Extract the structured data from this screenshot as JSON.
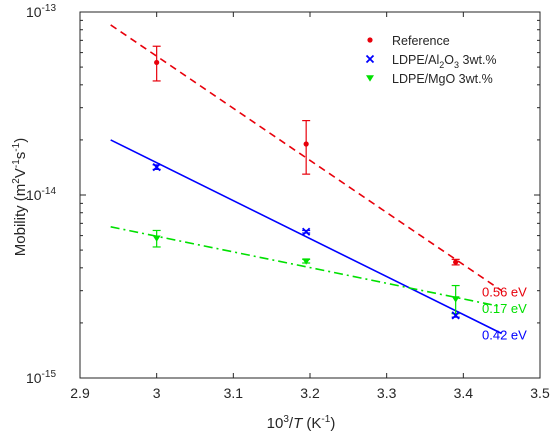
{
  "chart_data": {
    "type": "scatter",
    "xlabel": {
      "base": "10",
      "exp": "3",
      "slash": "/",
      "var": "T",
      "unit": " (K",
      "unit_exp": "-1",
      "close": ")"
    },
    "ylabel": {
      "pre": "Mobility (m",
      "e1": "2",
      "v": "V",
      "e2": "-1",
      "s": "s",
      "e3": "-1",
      "close": ")"
    },
    "xlim": [
      2.9,
      3.5
    ],
    "ylim": [
      1e-15,
      1e-13
    ],
    "yscale": "log",
    "x_ticks": [
      "2.9",
      "3",
      "3.1",
      "3.2",
      "3.3",
      "3.4",
      "3.5"
    ],
    "y_ticks": [
      {
        "base": "10",
        "exp": "-15"
      },
      {
        "base": "10",
        "exp": "-14"
      },
      {
        "base": "10",
        "exp": "-13"
      }
    ],
    "grid": false,
    "legend_position": "top-right",
    "series": [
      {
        "name": "Reference",
        "legend_label": {
          "a": "Reference"
        },
        "color": "#e8000b",
        "marker": "dot",
        "line_style": "dashed",
        "x": [
          3.0,
          3.195,
          3.39
        ],
        "y": [
          5.3e-14,
          1.9e-14,
          4.3e-15
        ],
        "y_err_low": [
          4.2e-14,
          1.3e-14,
          4.15e-15
        ],
        "y_err_high": [
          6.5e-14,
          2.55e-14,
          4.45e-15
        ],
        "fit": {
          "x": [
            2.94,
            3.45
          ],
          "y": [
            8.5e-14,
            3e-15
          ]
        },
        "annotation": "0.56 eV"
      },
      {
        "name": "LDPE/Al2O3 3wt.%",
        "legend_label": {
          "a": "LDPE/Al",
          "s1": "2",
          "b": "O",
          "s2": "3",
          "c": " 3wt.%"
        },
        "color": "#0000ff",
        "marker": "x",
        "line_style": "solid",
        "x": [
          3.0,
          3.195,
          3.39
        ],
        "y": [
          1.42e-14,
          6.3e-15,
          2.2e-15
        ],
        "y_err_low": [
          1.38e-14,
          6.2e-15,
          2.15e-15
        ],
        "y_err_high": [
          1.46e-14,
          6.4e-15,
          2.25e-15
        ],
        "fit": {
          "x": [
            2.94,
            3.45
          ],
          "y": [
            2e-14,
            1.75e-15
          ]
        },
        "annotation": "0.42 eV"
      },
      {
        "name": "LDPE/MgO 3wt.%",
        "legend_label": {
          "a": "LDPE/MgO 3wt.%"
        },
        "color": "#00e000",
        "marker": "triangle-down",
        "line_style": "dashdot",
        "x": [
          3.0,
          3.195,
          3.39
        ],
        "y": [
          5.8e-15,
          4.35e-15,
          2.7e-15
        ],
        "y_err_low": [
          5.2e-15,
          4.25e-15,
          2.25e-15
        ],
        "y_err_high": [
          6.4e-15,
          4.45e-15,
          3.2e-15
        ],
        "fit": {
          "x": [
            2.94,
            3.45
          ],
          "y": [
            6.7e-15,
            2.45e-15
          ]
        },
        "annotation": "0.17 eV"
      }
    ]
  }
}
